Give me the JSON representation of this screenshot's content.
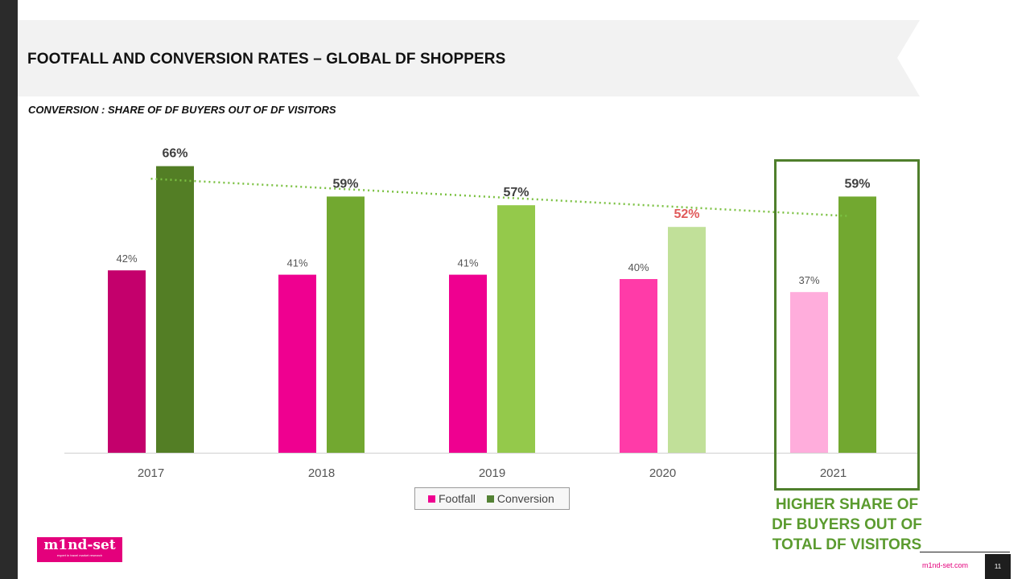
{
  "title": "FOOTFALL  AND CONVERSION  RATES – GLOBAL  DF SHOPPERS",
  "subtitle": "CONVERSION : SHARE OF DF BUYERS OUT OF DF VISITORS",
  "chart_data": {
    "type": "bar",
    "categories": [
      "2017",
      "2018",
      "2019",
      "2020",
      "2021"
    ],
    "series": [
      {
        "name": "Footfall",
        "values": [
          42,
          41,
          41,
          40,
          37
        ],
        "labels": [
          "42%",
          "41%",
          "41%",
          "40%",
          "37%"
        ],
        "colors": [
          "#c4006c",
          "#ef0090",
          "#ef0090",
          "#ff3ba8",
          "#ffaddc"
        ]
      },
      {
        "name": "Conversion",
        "values": [
          66,
          59,
          57,
          52,
          59
        ],
        "labels": [
          "66%",
          "59%",
          "57%",
          "52%",
          "59%"
        ],
        "colors": [
          "#537e25",
          "#72a830",
          "#94c94b",
          "#c1e099",
          "#72a830"
        ],
        "label_colors": [
          "#3f3f3f",
          "#3f3f3f",
          "#3f3f3f",
          "#e05a5a",
          "#3f3f3f"
        ]
      }
    ],
    "trendline": {
      "series": "Conversion",
      "style": "dotted",
      "color": "#7bc142"
    },
    "ylim": [
      0,
      70
    ],
    "grid": false,
    "legend": "bottom-center"
  },
  "legend": {
    "items": [
      {
        "label": "Footfall",
        "color": "#ef0090"
      },
      {
        "label": "Conversion",
        "color": "#548235"
      }
    ]
  },
  "callout": {
    "lines": [
      "HIGHER SHARE OF",
      "DF BUYERS OUT OF",
      "TOTAL  DF VISITORS"
    ]
  },
  "footer": {
    "logo_text": "m1nd-set",
    "logo_tagline": "expert in travel market research",
    "website": "m1nd-set.com",
    "page_number": "11"
  }
}
